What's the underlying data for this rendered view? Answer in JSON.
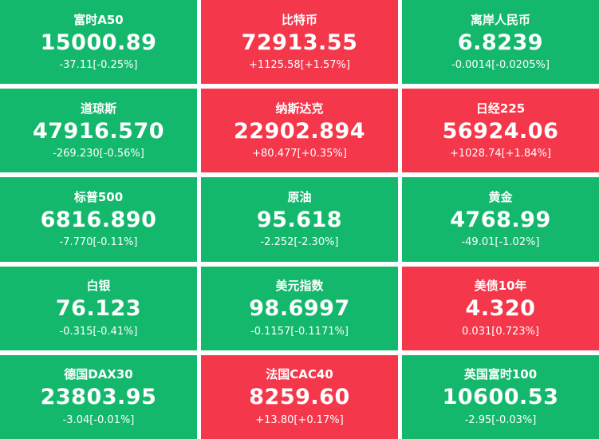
{
  "colors": {
    "up": "#f4374a",
    "down": "#14b86c",
    "text": "#ffffff",
    "page_background": "#ffffff"
  },
  "legend": {
    "up_means": "red tile = price rising",
    "down_means": "green tile = price falling"
  },
  "tiles": [
    {
      "name": "富时A50",
      "value": "15000.89",
      "change": "-37.11[-0.25%]",
      "direction": "down"
    },
    {
      "name": "比特币",
      "value": "72913.55",
      "change": "+1125.58[+1.57%]",
      "direction": "up"
    },
    {
      "name": "离岸人民币",
      "value": "6.8239",
      "change": "-0.0014[-0.0205%]",
      "direction": "down"
    },
    {
      "name": "道琼斯",
      "value": "47916.570",
      "change": "-269.230[-0.56%]",
      "direction": "down"
    },
    {
      "name": "纳斯达克",
      "value": "22902.894",
      "change": "+80.477[+0.35%]",
      "direction": "up"
    },
    {
      "name": "日经225",
      "value": "56924.06",
      "change": "+1028.74[+1.84%]",
      "direction": "up"
    },
    {
      "name": "标普500",
      "value": "6816.890",
      "change": "-7.770[-0.11%]",
      "direction": "down"
    },
    {
      "name": "原油",
      "value": "95.618",
      "change": "-2.252[-2.30%]",
      "direction": "down"
    },
    {
      "name": "黄金",
      "value": "4768.99",
      "change": "-49.01[-1.02%]",
      "direction": "down"
    },
    {
      "name": "白银",
      "value": "76.123",
      "change": "-0.315[-0.41%]",
      "direction": "down"
    },
    {
      "name": "美元指数",
      "value": "98.6997",
      "change": "-0.1157[-0.1171%]",
      "direction": "down"
    },
    {
      "name": "美债10年",
      "value": "4.320",
      "change": "0.031[0.723%]",
      "direction": "up"
    },
    {
      "name": "德国DAX30",
      "value": "23803.95",
      "change": "-3.04[-0.01%]",
      "direction": "down"
    },
    {
      "name": "法国CAC40",
      "value": "8259.60",
      "change": "+13.80[+0.17%]",
      "direction": "up"
    },
    {
      "name": "英国富时100",
      "value": "10600.53",
      "change": "-2.95[-0.03%]",
      "direction": "down"
    }
  ]
}
